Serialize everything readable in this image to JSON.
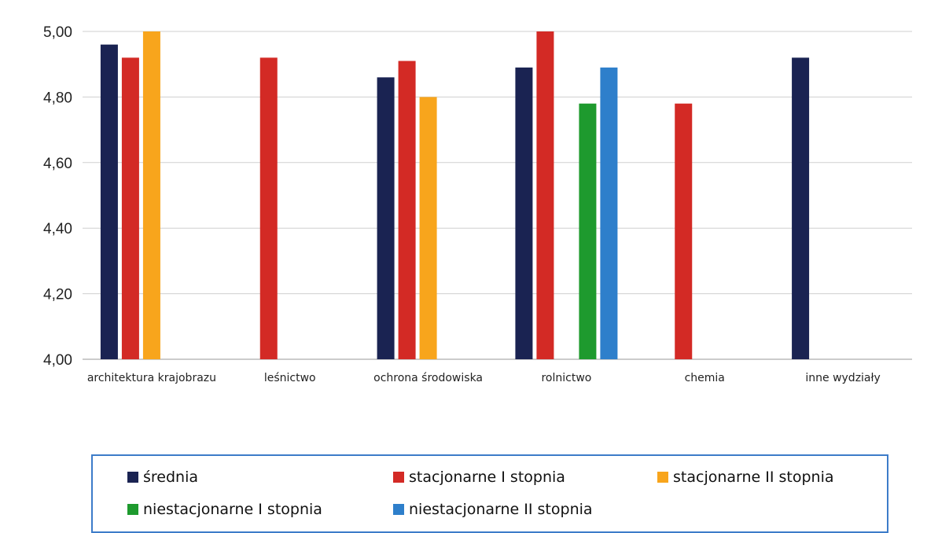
{
  "chart_data": {
    "type": "bar",
    "categories": [
      "architektura krajobrazu",
      "leśnictwo",
      "ochrona środowiska",
      "rolnictwo",
      "chemia",
      "inne wydziały"
    ],
    "ylim": [
      4.0,
      5.0
    ],
    "yticks": [
      "4,00",
      "4,20",
      "4,40",
      "4,60",
      "4,80",
      "5,00"
    ],
    "ytick_values": [
      4.0,
      4.2,
      4.4,
      4.6,
      4.8,
      5.0
    ],
    "grid": true,
    "legend_position": "bottom",
    "series": [
      {
        "name": "średnia",
        "color": "#1a2352",
        "values": [
          4.96,
          null,
          4.86,
          4.89,
          null,
          4.92
        ]
      },
      {
        "name": "stacjonarne I stopnia",
        "color": "#d32a25",
        "values": [
          4.92,
          4.92,
          4.91,
          5.0,
          4.78,
          null
        ]
      },
      {
        "name": "stacjonarne II stopnia",
        "color": "#f8a51c",
        "values": [
          5.0,
          null,
          4.8,
          null,
          null,
          null
        ]
      },
      {
        "name": "niestacjonarne I stopnia",
        "color": "#1e9a2e",
        "values": [
          null,
          null,
          null,
          4.78,
          null,
          null
        ]
      },
      {
        "name": "niestacjonarne II stopnia",
        "color": "#2e7fcb",
        "values": [
          null,
          null,
          null,
          4.89,
          null,
          null
        ]
      }
    ]
  }
}
